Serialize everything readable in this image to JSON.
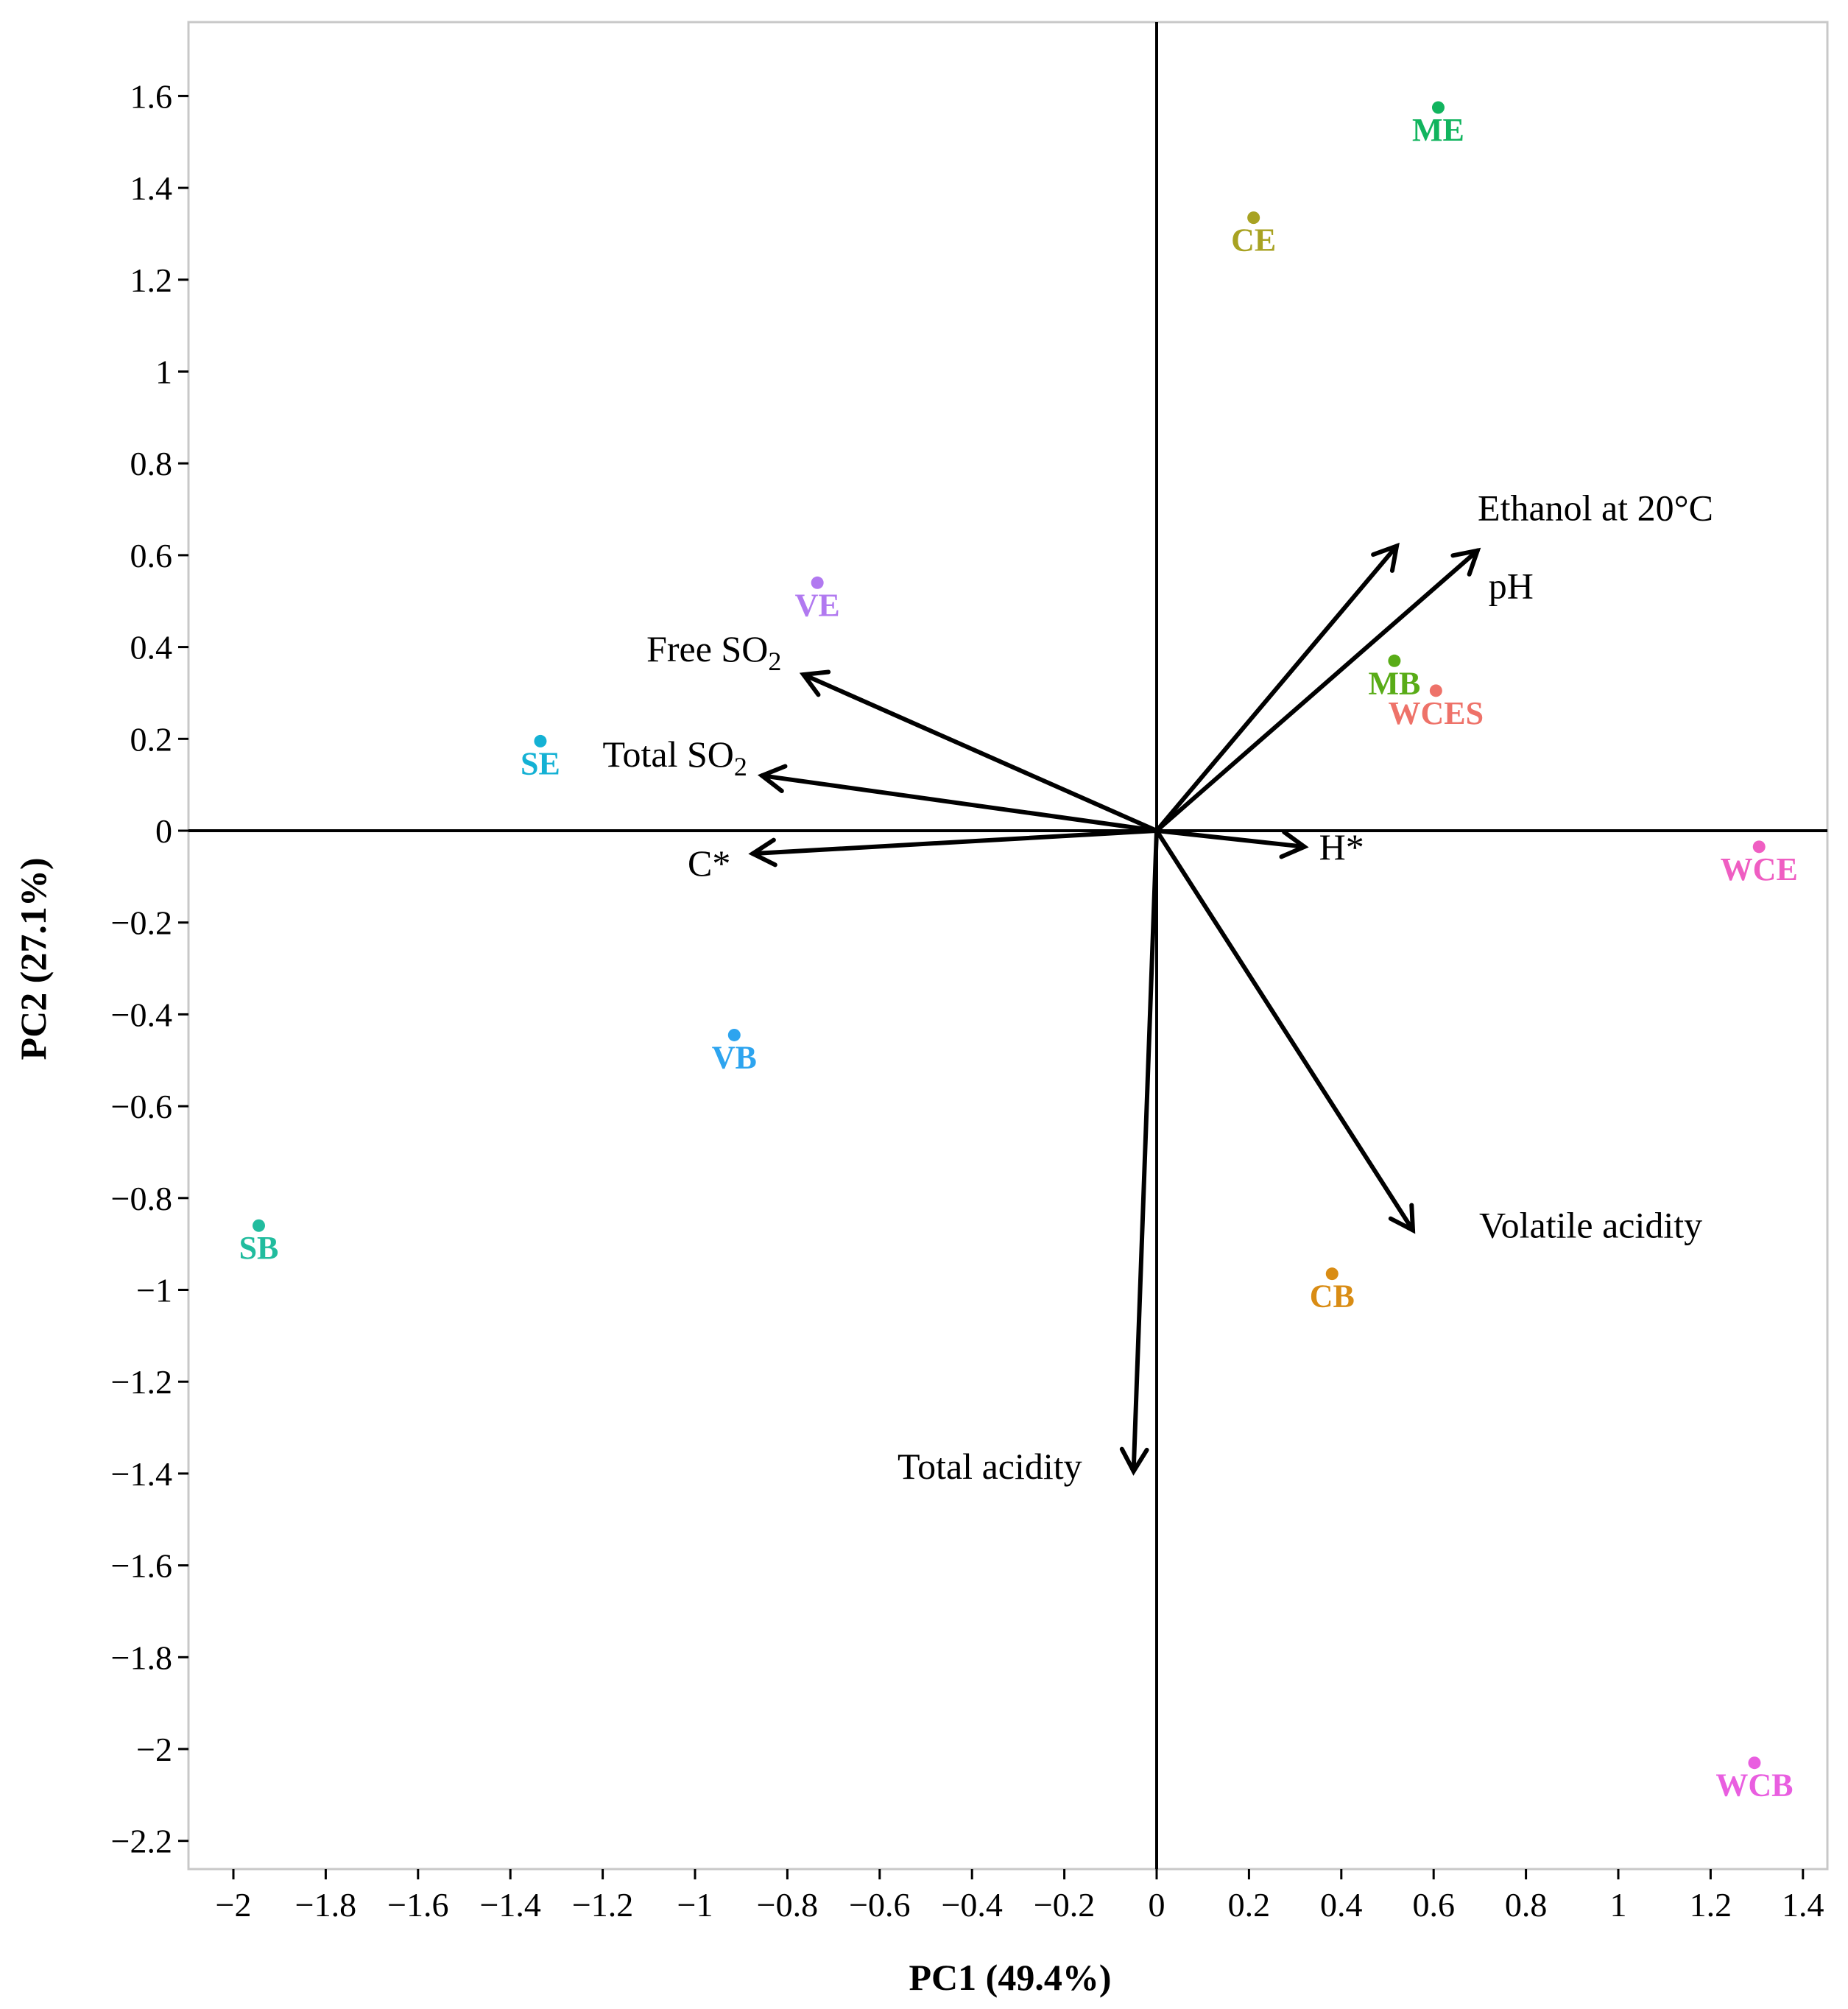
{
  "chart_data": {
    "type": "scatter",
    "subtype": "pca-biplot",
    "title": "",
    "xlabel": "PC1 (49.4%)",
    "ylabel": "PC2 (27.1%)",
    "xlim": [
      -2.1,
      1.46
    ],
    "ylim": [
      -2.3,
      1.76
    ],
    "xticks": [
      -2,
      -1.8,
      -1.6,
      -1.4,
      -1.2,
      -1,
      -0.8,
      -0.6,
      -0.4,
      -0.2,
      0,
      0.2,
      0.4,
      0.6,
      0.8,
      1,
      1.2,
      1.4
    ],
    "xtick_labels": [
      "−2",
      "−1.8",
      "−1.6",
      "−1.4",
      "−1.2",
      "−1",
      "−0.8",
      "−0.6",
      "−0.4",
      "−0.2",
      "0",
      "0.2",
      "0.4",
      "0.6",
      "0.8",
      "1",
      "1.2",
      "1.4"
    ],
    "yticks": [
      1.6,
      1.4,
      1.2,
      1,
      0.8,
      0.6,
      0.4,
      0.2,
      0,
      -0.2,
      -0.4,
      -0.6,
      -0.8,
      -1,
      -1.2,
      -1.4,
      -1.6,
      -1.8,
      -2,
      -2.2
    ],
    "ytick_labels": [
      "1.6",
      "1.4",
      "1.2",
      "1",
      "0.8",
      "0.6",
      "0.4",
      "0.2",
      "0",
      "−0.2",
      "−0.4",
      "−0.6",
      "−0.8",
      "−1",
      "−1.2",
      "−1.4",
      "−1.6",
      "−1.8",
      "−2",
      "−2.2"
    ],
    "grid": false,
    "points": [
      {
        "label": "ME",
        "x": 0.61,
        "y": 1.575,
        "color": "#11b45e"
      },
      {
        "label": "CE",
        "x": 0.21,
        "y": 1.335,
        "color": "#a8a222"
      },
      {
        "label": "VE",
        "x": -0.735,
        "y": 0.54,
        "color": "#b179f0"
      },
      {
        "label": "SE",
        "x": -1.335,
        "y": 0.195,
        "color": "#14b1d4"
      },
      {
        "label": "MB",
        "x": 0.515,
        "y": 0.37,
        "color": "#59ac17"
      },
      {
        "label": "WCES",
        "x": 0.605,
        "y": 0.305,
        "color": "#ee7269"
      },
      {
        "label": "WCE",
        "x": 1.305,
        "y": -0.035,
        "color": "#ef5ec2"
      },
      {
        "label": "VB",
        "x": -0.915,
        "y": -0.445,
        "color": "#2da4ef"
      },
      {
        "label": "SB",
        "x": -1.945,
        "y": -0.86,
        "color": "#21bc9e"
      },
      {
        "label": "CB",
        "x": 0.38,
        "y": -0.965,
        "color": "#d98c14"
      },
      {
        "label": "WCB",
        "x": 1.295,
        "y": -2.03,
        "color": "#e95ee0"
      }
    ],
    "vectors": [
      {
        "name": "Ethanol at 20°C",
        "text": "Ethanol at 20°C",
        "sub": "",
        "x": 0.52,
        "y": 0.62
      },
      {
        "name": "pH",
        "text": "pH",
        "sub": "",
        "x": 0.695,
        "y": 0.61
      },
      {
        "name": "Free SO2",
        "text": "Free SO",
        "sub": "2",
        "x": -0.765,
        "y": 0.34
      },
      {
        "name": "Total SO2",
        "text": "Total SO",
        "sub": "2",
        "x": -0.855,
        "y": 0.12
      },
      {
        "name": "C*",
        "text": "C*",
        "sub": "",
        "x": -0.875,
        "y": -0.05
      },
      {
        "name": "H*",
        "text": "H*",
        "sub": "",
        "x": 0.32,
        "y": -0.035
      },
      {
        "name": "Volatile acidity",
        "text": "Volatile acidity",
        "sub": "",
        "x": 0.555,
        "y": -0.87
      },
      {
        "name": "Total acidity",
        "text": "Total acidity",
        "sub": "",
        "x": -0.05,
        "y": -1.395
      }
    ]
  }
}
